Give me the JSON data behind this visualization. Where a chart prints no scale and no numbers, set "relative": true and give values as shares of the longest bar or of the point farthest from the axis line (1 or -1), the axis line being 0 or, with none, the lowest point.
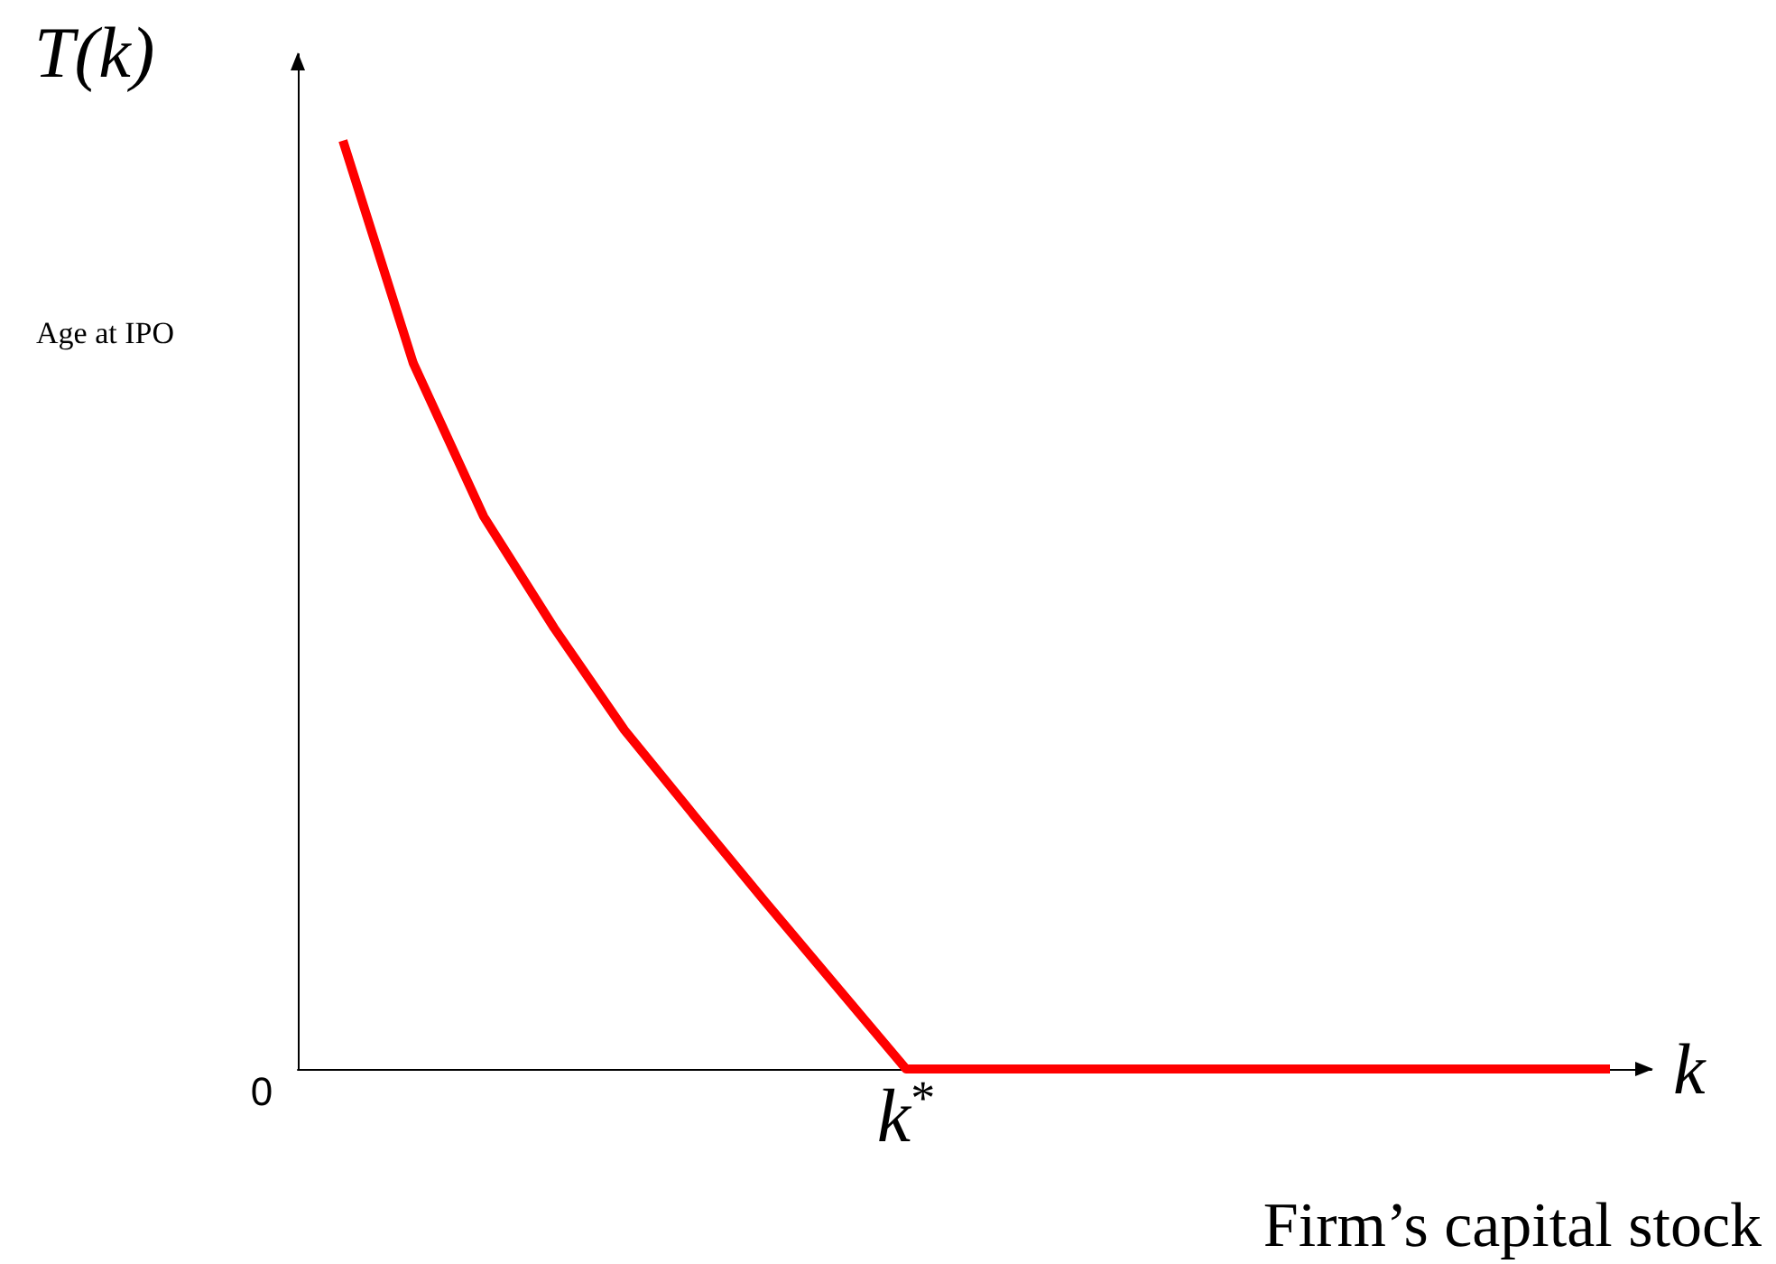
{
  "chart_data": {
    "type": "line",
    "relative": true,
    "ylabel": "T(k)",
    "xlabel": "k",
    "annotations": [
      "Age at IPO",
      "Firm’s capital stock",
      "0",
      "k$^{*}$"
    ],
    "categories": [
      null,
      null,
      null,
      null,
      null,
      null,
      null,
      null,
      null,
      null,
      null,
      null,
      null,
      null,
      null,
      null,
      null,
      null,
      null
    ],
    "series": [
      {
        "color": "#ff0000",
        "values": [
          1,
          0.76,
          0.595,
          0.475,
          0.365,
          0.272,
          0.18,
          0.09,
          0,
          0,
          0,
          0,
          0,
          0,
          0,
          0,
          0,
          0,
          0
        ]
      }
    ],
    "grid": false,
    "marker": "none",
    "line_style": "solid"
  }
}
